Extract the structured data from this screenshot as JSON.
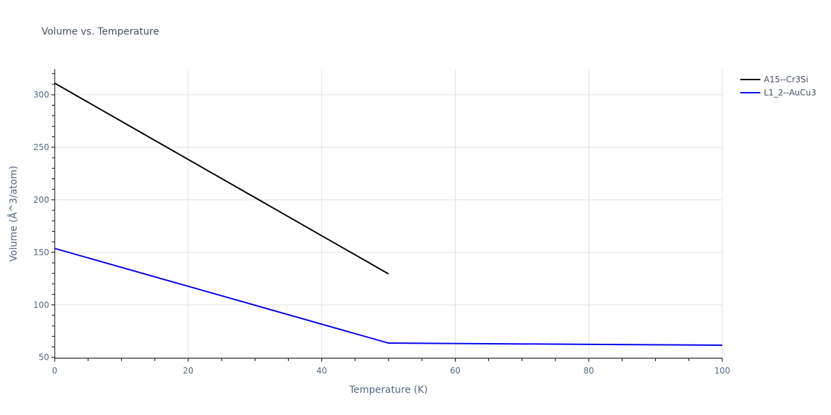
{
  "chart_data": {
    "type": "line",
    "title": "Volume vs. Temperature",
    "xlabel": "Temperature (K)",
    "ylabel": "Volume (Å^3/atom)",
    "xlim": [
      0,
      100
    ],
    "ylim": [
      48,
      324
    ],
    "x_ticks": [
      0,
      20,
      40,
      60,
      80,
      100
    ],
    "y_ticks": [
      50,
      100,
      150,
      200,
      250,
      300
    ],
    "x_minor_step": 5,
    "y_minor_step": 10,
    "grid": true,
    "legend_position": "top-right-outside",
    "series": [
      {
        "name": "A15--Cr3Si",
        "color": "#000000",
        "x": [
          0,
          50
        ],
        "y": [
          311,
          129.5
        ]
      },
      {
        "name": "L1_2--AuCu3",
        "color": "#0000ee",
        "x": [
          0,
          50,
          100
        ],
        "y": [
          153.7,
          63.6,
          61.6
        ]
      }
    ]
  }
}
